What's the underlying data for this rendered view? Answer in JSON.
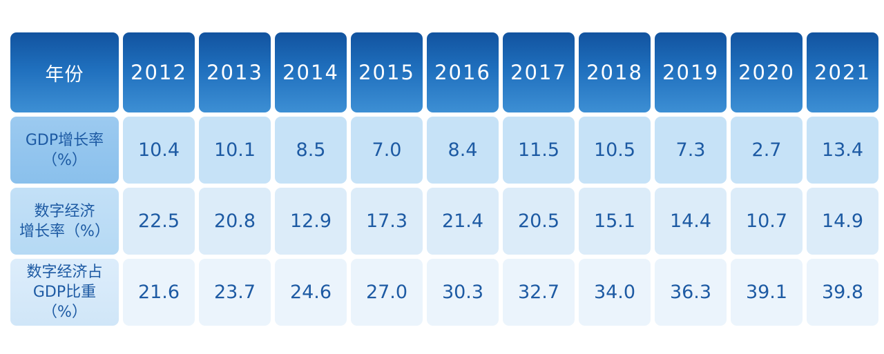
{
  "chart_data": {
    "type": "table",
    "header_label": "年份",
    "years": [
      "2012",
      "2013",
      "2014",
      "2015",
      "2016",
      "2017",
      "2018",
      "2019",
      "2020",
      "2021"
    ],
    "rows": [
      {
        "label": "GDP增长率\n（%）",
        "values": [
          "10.4",
          "10.1",
          "8.5",
          "7.0",
          "8.4",
          "11.5",
          "10.5",
          "7.3",
          "2.7",
          "13.4"
        ]
      },
      {
        "label": "数字经济\n增长率（%）",
        "values": [
          "22.5",
          "20.8",
          "12.9",
          "17.3",
          "21.4",
          "20.5",
          "15.1",
          "14.4",
          "10.7",
          "14.9"
        ]
      },
      {
        "label": "数字经济占\nGDP比重（%）",
        "values": [
          "21.6",
          "23.7",
          "24.6",
          "27.0",
          "30.3",
          "32.7",
          "34.0",
          "36.3",
          "39.1",
          "39.8"
        ]
      }
    ],
    "colors": {
      "header_dark": "#12539f",
      "header_light": "#3d8fd4",
      "text_blue": "#1d5aa3",
      "row1_bg": "#c6e2f7",
      "row2_bg": "#dcecf9",
      "row3_bg": "#ebf4fc"
    }
  }
}
